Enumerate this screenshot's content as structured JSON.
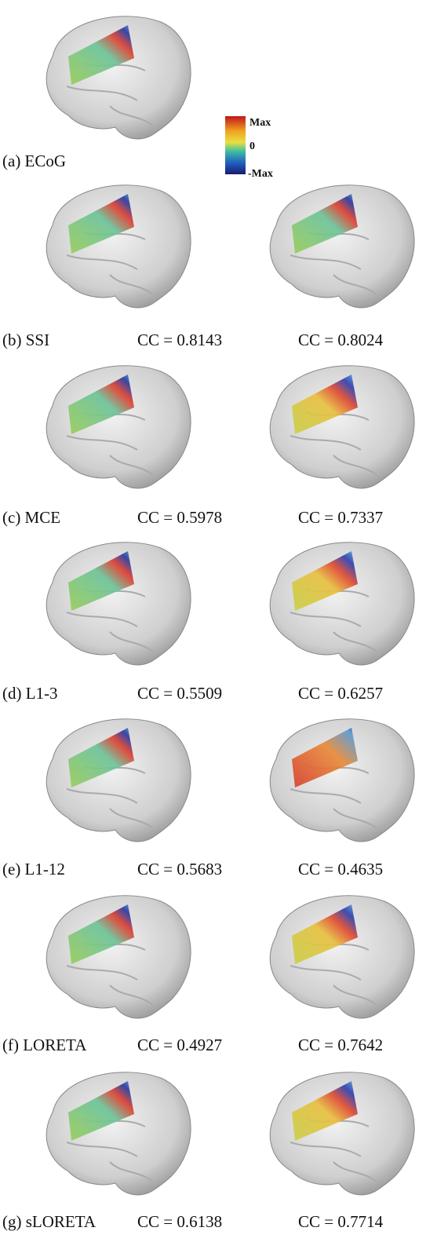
{
  "colorbar": {
    "max": "Max",
    "zero": "0",
    "min": "-Max"
  },
  "panels": [
    {
      "label": "(a) ECoG"
    },
    {
      "label": "(b) SSI",
      "cc_left": "CC = 0.8143",
      "cc_right": "CC = 0.8024"
    },
    {
      "label": "(c) MCE",
      "cc_left": "CC = 0.5978",
      "cc_right": "CC = 0.7337"
    },
    {
      "label": "(d) L1-3",
      "cc_left": "CC = 0.5509",
      "cc_right": "CC = 0.6257"
    },
    {
      "label": "(e) L1-12",
      "cc_left": "CC = 0.5683",
      "cc_right": "CC = 0.4635"
    },
    {
      "label": "(f) LORETA",
      "cc_left": "CC = 0.4927",
      "cc_right": "CC = 0.7642"
    },
    {
      "label": "(g) sLORETA",
      "cc_left": "CC = 0.6138",
      "cc_right": "CC = 0.7714"
    }
  ]
}
